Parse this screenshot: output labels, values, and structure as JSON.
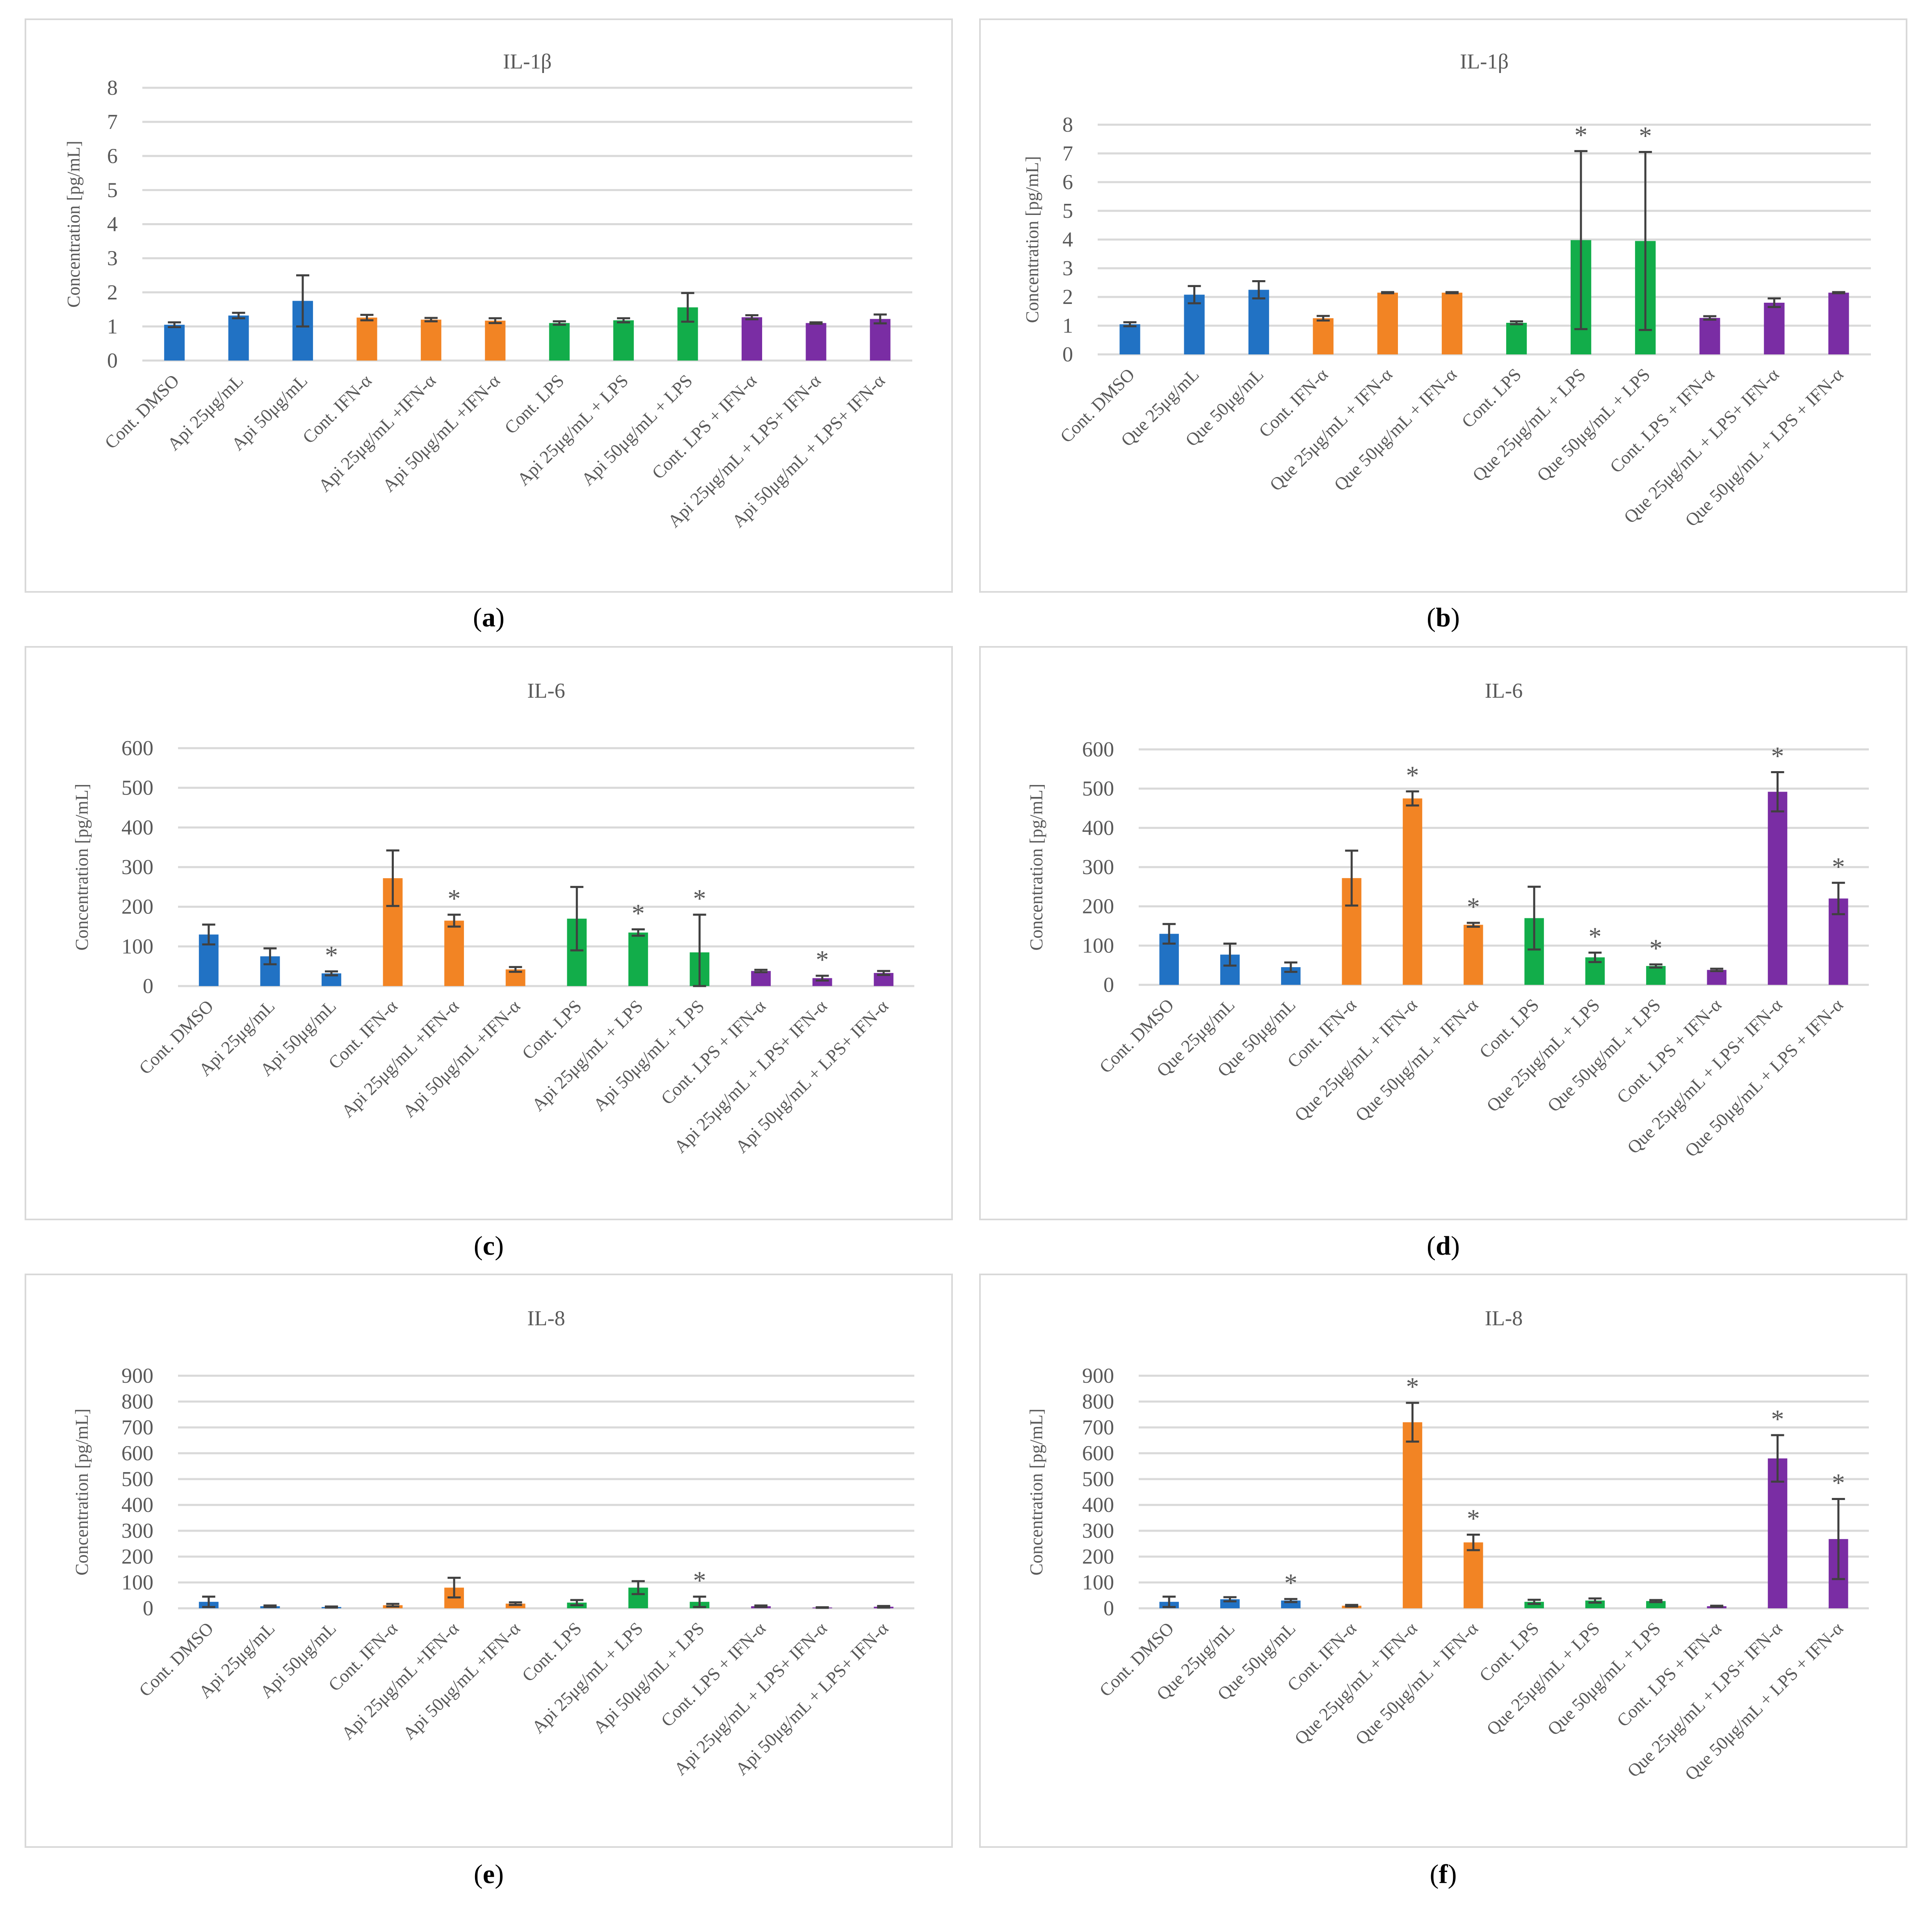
{
  "colors": {
    "blue": "#2172C4",
    "orange": "#F28424",
    "green": "#12AD4A",
    "purple": "#7A2DA4",
    "grid": "#d9d9d9",
    "text": "#595959"
  },
  "chart_data": [
    {
      "id": "a",
      "panel_label": "a",
      "type": "bar",
      "title": "IL-1β",
      "ylabel": "Concentration [pg/mL]",
      "ylim": [
        0,
        8
      ],
      "yticks": [
        0,
        1,
        2,
        3,
        4,
        5,
        6,
        7,
        8
      ],
      "categories": [
        "Cont. DMSO",
        "Api 25μg/mL",
        "Api 50μg/mL",
        "Cont. IFN-α",
        "Api 25μg/mL +IFN-α",
        "Api 50μg/mL +IFN-α",
        "Cont. LPS",
        "Api 25μg/mL + LPS",
        "Api 50μg/mL + LPS",
        "Cont. LPS + IFN-α",
        "Api 25μg/mL + LPS+ IFN-α",
        "Api 50μg/mL + LPS+ IFN-α"
      ],
      "values": [
        1.05,
        1.32,
        1.75,
        1.26,
        1.2,
        1.17,
        1.1,
        1.18,
        1.56,
        1.27,
        1.1,
        1.22
      ],
      "errors": [
        0.07,
        0.08,
        0.75,
        0.08,
        0.05,
        0.07,
        0.05,
        0.06,
        0.42,
        0.06,
        0.02,
        0.13
      ],
      "significant": [
        false,
        false,
        false,
        false,
        false,
        false,
        false,
        false,
        false,
        false,
        false,
        false
      ],
      "groups": [
        "blue",
        "blue",
        "blue",
        "orange",
        "orange",
        "orange",
        "green",
        "green",
        "green",
        "purple",
        "purple",
        "purple"
      ]
    },
    {
      "id": "b",
      "panel_label": "b",
      "type": "bar",
      "title": "IL-1β",
      "ylabel": "Concentration [pg/mL]",
      "ylim": [
        0,
        8
      ],
      "yticks": [
        0,
        1,
        2,
        3,
        4,
        5,
        6,
        7,
        8
      ],
      "categories": [
        "Cont. DMSO",
        "Que 25μg/mL",
        "Que 50μg/mL",
        "Cont. IFN-α",
        "Que 25μg/mL + IFN-α",
        "Que 50μg/mL + IFN-α",
        "Cont. LPS",
        "Que 25μg/mL + LPS",
        "Que 50μg/mL + LPS",
        "Cont. LPS + IFN-α",
        "Que 25μg/mL + LPS+ IFN-α",
        "Que 50μg/mL + LPS + IFN-α"
      ],
      "values": [
        1.05,
        2.08,
        2.25,
        1.26,
        2.15,
        2.15,
        1.1,
        3.98,
        3.95,
        1.27,
        1.8,
        2.15
      ],
      "errors": [
        0.07,
        0.3,
        0.3,
        0.08,
        0.02,
        0.02,
        0.05,
        3.1,
        3.1,
        0.06,
        0.15,
        0.02
      ],
      "significant": [
        false,
        false,
        false,
        false,
        false,
        false,
        false,
        true,
        true,
        false,
        false,
        false
      ],
      "groups": [
        "blue",
        "blue",
        "blue",
        "orange",
        "orange",
        "orange",
        "green",
        "green",
        "green",
        "purple",
        "purple",
        "purple"
      ]
    },
    {
      "id": "c",
      "panel_label": "c",
      "type": "bar",
      "title": "IL-6",
      "ylabel": "Concentration [pg/mL]",
      "ylim": [
        0,
        600
      ],
      "yticks": [
        0,
        100,
        200,
        300,
        400,
        500,
        600
      ],
      "categories": [
        "Cont. DMSO",
        "Api 25μg/mL",
        "Api 50μg/mL",
        "Cont. IFN-α",
        "Api 25μg/mL +IFN-α",
        "Api 50μg/mL +IFN-α",
        "Cont. LPS",
        "Api 25μg/mL + LPS",
        "Api 50μg/mL + LPS",
        "Cont. LPS + IFN-α",
        "Api 25μg/mL + LPS+ IFN-α",
        "Api 50μg/mL + LPS+ IFN-α"
      ],
      "values": [
        130,
        75,
        32,
        272,
        165,
        42,
        170,
        135,
        85,
        38,
        20,
        33
      ],
      "errors": [
        25,
        20,
        5,
        70,
        15,
        6,
        80,
        8,
        95,
        3,
        6,
        5
      ],
      "significant": [
        false,
        false,
        true,
        false,
        true,
        false,
        false,
        true,
        true,
        false,
        true,
        false
      ],
      "groups": [
        "blue",
        "blue",
        "blue",
        "orange",
        "orange",
        "orange",
        "green",
        "green",
        "green",
        "purple",
        "purple",
        "purple"
      ]
    },
    {
      "id": "d",
      "panel_label": "d",
      "type": "bar",
      "title": "IL-6",
      "ylabel": "Concentration [pg/mL]",
      "ylim": [
        0,
        600
      ],
      "yticks": [
        0,
        100,
        200,
        300,
        400,
        500,
        600
      ],
      "categories": [
        "Cont. DMSO",
        "Que 25μg/mL",
        "Que 50μg/mL",
        "Cont. IFN-α",
        "Que 25μg/mL + IFN-α",
        "Que 50μg/mL + IFN-α",
        "Cont. LPS",
        "Que 25μg/mL + LPS",
        "Que 50μg/mL + LPS",
        "Cont. LPS + IFN-α",
        "Que 25μg/mL + LPS+ IFN-α",
        "Que 50μg/mL + LPS + IFN-α"
      ],
      "values": [
        130,
        77,
        45,
        272,
        475,
        153,
        170,
        70,
        48,
        38,
        492,
        220
      ],
      "errors": [
        25,
        28,
        12,
        70,
        18,
        5,
        80,
        12,
        4,
        3,
        50,
        40
      ],
      "significant": [
        false,
        false,
        false,
        false,
        true,
        true,
        false,
        true,
        true,
        false,
        true,
        true
      ],
      "groups": [
        "blue",
        "blue",
        "blue",
        "orange",
        "orange",
        "orange",
        "green",
        "green",
        "green",
        "purple",
        "purple",
        "purple"
      ]
    },
    {
      "id": "e",
      "panel_label": "e",
      "type": "bar",
      "title": "IL-8",
      "ylabel": "Concentration [pg/mL]",
      "ylim": [
        0,
        900
      ],
      "yticks": [
        0,
        100,
        200,
        300,
        400,
        500,
        600,
        700,
        800,
        900
      ],
      "categories": [
        "Cont. DMSO",
        "Api 25μg/mL",
        "Api 50μg/mL",
        "Cont. IFN-α",
        "Api 25μg/mL +IFN-α",
        "Api 50μg/mL +IFN-α",
        "Cont. LPS",
        "Api 25μg/mL + LPS",
        "Api 50μg/mL + LPS",
        "Cont. LPS + IFN-α",
        "Api 25μg/mL + LPS+ IFN-α",
        "Api 50μg/mL + LPS+ IFN-α"
      ],
      "values": [
        25,
        8,
        5,
        12,
        80,
        18,
        22,
        80,
        25,
        8,
        3,
        6
      ],
      "errors": [
        20,
        3,
        2,
        5,
        38,
        5,
        10,
        25,
        20,
        3,
        1,
        3
      ],
      "significant": [
        false,
        false,
        false,
        false,
        false,
        false,
        false,
        false,
        true,
        false,
        false,
        false
      ],
      "groups": [
        "blue",
        "blue",
        "blue",
        "orange",
        "orange",
        "orange",
        "green",
        "green",
        "green",
        "purple",
        "purple",
        "purple"
      ]
    },
    {
      "id": "f",
      "panel_label": "f",
      "type": "bar",
      "title": "IL-8",
      "ylabel": "Concentration [pg/mL]",
      "ylim": [
        0,
        900
      ],
      "yticks": [
        0,
        100,
        200,
        300,
        400,
        500,
        600,
        700,
        800,
        900
      ],
      "categories": [
        "Cont. DMSO",
        "Que 25μg/mL",
        "Que 50μg/mL",
        "Cont. IFN-α",
        "Que 25μg/mL + IFN-α",
        "Que 50μg/mL + IFN-α",
        "Cont. LPS",
        "Que 25μg/mL + LPS",
        "Que 50μg/mL + LPS",
        "Cont. LPS + IFN-α",
        "Que 25μg/mL + LPS+ IFN-α",
        "Que 50μg/mL + LPS + IFN-α"
      ],
      "values": [
        25,
        35,
        30,
        10,
        720,
        255,
        25,
        30,
        28,
        8,
        580,
        268
      ],
      "errors": [
        20,
        8,
        6,
        3,
        75,
        30,
        8,
        8,
        4,
        2,
        90,
        155
      ],
      "significant": [
        false,
        false,
        true,
        false,
        true,
        true,
        false,
        false,
        false,
        false,
        true,
        true
      ],
      "groups": [
        "blue",
        "blue",
        "blue",
        "orange",
        "orange",
        "orange",
        "green",
        "green",
        "green",
        "purple",
        "purple",
        "purple"
      ]
    }
  ]
}
